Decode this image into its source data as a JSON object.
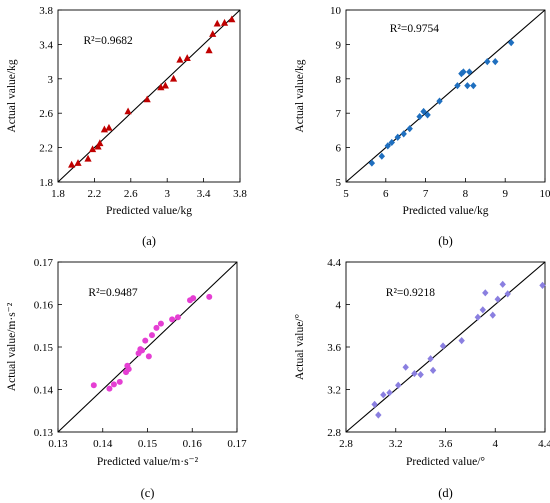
{
  "chart_data": [
    {
      "type": "scatter",
      "panel_label": "(a)",
      "xlabel": "Predicted value/kg",
      "ylabel": "Actual value/kg",
      "annotation": "R²=0.9682",
      "xlim": [
        1.8,
        3.8
      ],
      "ylim": [
        1.8,
        3.8
      ],
      "xticks": [
        "1.8",
        "2.2",
        "2.6",
        "3",
        "3.4",
        "3.8"
      ],
      "yticks": [
        "1.8",
        "2.2",
        "2.6",
        "3",
        "3.4",
        "3.8"
      ],
      "marker": "triangle",
      "marker_color": "#c00000",
      "reference_line": "y=x",
      "points": [
        [
          1.95,
          2.0
        ],
        [
          2.02,
          2.02
        ],
        [
          2.13,
          2.07
        ],
        [
          2.18,
          2.18
        ],
        [
          2.24,
          2.21
        ],
        [
          2.26,
          2.25
        ],
        [
          2.31,
          2.41
        ],
        [
          2.36,
          2.43
        ],
        [
          2.57,
          2.62
        ],
        [
          2.78,
          2.76
        ],
        [
          2.93,
          2.9
        ],
        [
          2.98,
          2.92
        ],
        [
          3.07,
          3.0
        ],
        [
          3.14,
          3.22
        ],
        [
          3.22,
          3.24
        ],
        [
          3.46,
          3.33
        ],
        [
          3.5,
          3.52
        ],
        [
          3.55,
          3.64
        ],
        [
          3.63,
          3.65
        ],
        [
          3.71,
          3.69
        ]
      ]
    },
    {
      "type": "scatter",
      "panel_label": "(b)",
      "xlabel": "Predicted value/kg",
      "ylabel": "Actual value/kg",
      "annotation": "R²=0.9754",
      "xlim": [
        5,
        10
      ],
      "ylim": [
        5,
        10
      ],
      "xticks": [
        "5",
        "6",
        "7",
        "8",
        "9",
        "10"
      ],
      "yticks": [
        "5",
        "6",
        "7",
        "8",
        "9",
        "10"
      ],
      "marker": "diamond",
      "marker_color": "#1f6fbf",
      "reference_line": "y=x",
      "points": [
        [
          5.65,
          5.55
        ],
        [
          5.9,
          5.75
        ],
        [
          6.05,
          6.05
        ],
        [
          6.15,
          6.15
        ],
        [
          6.3,
          6.3
        ],
        [
          6.45,
          6.4
        ],
        [
          6.6,
          6.55
        ],
        [
          6.85,
          6.9
        ],
        [
          6.95,
          7.05
        ],
        [
          7.05,
          6.95
        ],
        [
          7.35,
          7.35
        ],
        [
          7.8,
          7.8
        ],
        [
          7.9,
          8.15
        ],
        [
          7.95,
          8.2
        ],
        [
          8.05,
          7.8
        ],
        [
          8.1,
          8.2
        ],
        [
          8.2,
          7.8
        ],
        [
          8.55,
          8.5
        ],
        [
          8.75,
          8.5
        ],
        [
          9.15,
          9.05
        ]
      ]
    },
    {
      "type": "scatter",
      "panel_label": "(c)",
      "xlabel": "Predicted value/m·s⁻²",
      "ylabel": "Actual value/m·s⁻²",
      "annotation": "R²=0.9487",
      "xlim": [
        0.13,
        0.17
      ],
      "ylim": [
        0.13,
        0.17
      ],
      "xticks": [
        "0.13",
        "0.14",
        "0.15",
        "0.16",
        "0.17"
      ],
      "yticks": [
        "0.13",
        "0.14",
        "0.15",
        "0.16",
        "0.17"
      ],
      "marker": "circle",
      "marker_color": "#e53fd3",
      "reference_line": "y=x",
      "points": [
        [
          0.138,
          0.141
        ],
        [
          0.1415,
          0.1402
        ],
        [
          0.1425,
          0.1412
        ],
        [
          0.1438,
          0.1418
        ],
        [
          0.1452,
          0.1441
        ],
        [
          0.1455,
          0.1456
        ],
        [
          0.1458,
          0.1448
        ],
        [
          0.148,
          0.1485
        ],
        [
          0.1484,
          0.1495
        ],
        [
          0.1488,
          0.1492
        ],
        [
          0.1495,
          0.1515
        ],
        [
          0.1503,
          0.1478
        ],
        [
          0.151,
          0.1528
        ],
        [
          0.152,
          0.1545
        ],
        [
          0.153,
          0.1555
        ],
        [
          0.1555,
          0.1565
        ],
        [
          0.1568,
          0.157
        ],
        [
          0.1595,
          0.161
        ],
        [
          0.1602,
          0.1615
        ],
        [
          0.1638,
          0.1618
        ]
      ]
    },
    {
      "type": "scatter",
      "panel_label": "(d)",
      "xlabel": "Predicted value/°",
      "ylabel": "Actual value/°",
      "annotation": "R²=0.9218",
      "xlim": [
        2.8,
        4.4
      ],
      "ylim": [
        2.8,
        4.4
      ],
      "xticks": [
        "2.8",
        "3.2",
        "3.6",
        "4",
        "4.4"
      ],
      "yticks": [
        "2.8",
        "3.2",
        "3.6",
        "4",
        "4.4"
      ],
      "marker": "diamond",
      "marker_color": "#8a7fe0",
      "reference_line": "y=x",
      "points": [
        [
          3.03,
          3.06
        ],
        [
          3.06,
          2.96
        ],
        [
          3.1,
          3.15
        ],
        [
          3.15,
          3.17
        ],
        [
          3.22,
          3.24
        ],
        [
          3.28,
          3.41
        ],
        [
          3.35,
          3.35
        ],
        [
          3.4,
          3.34
        ],
        [
          3.48,
          3.49
        ],
        [
          3.5,
          3.38
        ],
        [
          3.58,
          3.61
        ],
        [
          3.73,
          3.66
        ],
        [
          3.86,
          3.88
        ],
        [
          3.9,
          3.95
        ],
        [
          3.92,
          4.11
        ],
        [
          3.98,
          3.9
        ],
        [
          4.02,
          4.05
        ],
        [
          4.06,
          4.19
        ],
        [
          4.1,
          4.1
        ],
        [
          4.38,
          4.18
        ]
      ]
    }
  ]
}
